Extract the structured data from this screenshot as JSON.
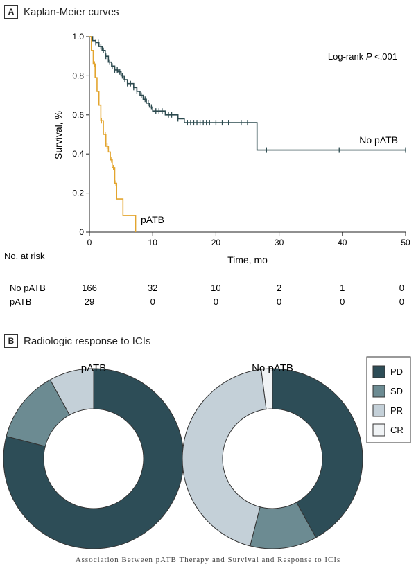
{
  "panel_a": {
    "letter": "A",
    "title": "Kaplan-Meier curves"
  },
  "panel_b": {
    "letter": "B",
    "title": "Radiologic response to ICIs"
  },
  "caption": "Association Between pATB Therapy and Survival and Response to ICIs",
  "colors": {
    "no_patb": "#2c4a4f",
    "patb": "#e3a52f",
    "PD": "#2d4d57",
    "SD": "#6c8b92",
    "PR": "#c4d0d8",
    "CR": "#f0f3f5"
  },
  "chart_data": [
    {
      "type": "line",
      "subtype": "kaplan-meier",
      "title": "Kaplan-Meier curves",
      "xlabel": "Time, mo",
      "ylabel": "Survival, %",
      "xlim": [
        0,
        50
      ],
      "ylim": [
        0,
        1.0
      ],
      "xticks": [
        0,
        10,
        20,
        30,
        40,
        50
      ],
      "yticks": [
        0,
        0.2,
        0.4,
        0.6,
        0.8,
        1.0
      ],
      "ytick_labels": [
        "0",
        "0.2",
        "0.4",
        "0.6",
        "0.8",
        "1.0"
      ],
      "annotation": {
        "prefix": "Log-rank ",
        "italic": "P",
        "suffix": " <.001"
      },
      "series": [
        {
          "name": "No pATB",
          "color": "#2c4a4f",
          "steps": [
            [
              0,
              1.0
            ],
            [
              0.5,
              0.98
            ],
            [
              1,
              0.97
            ],
            [
              1.5,
              0.95
            ],
            [
              2,
              0.93
            ],
            [
              2.5,
              0.9
            ],
            [
              3,
              0.87
            ],
            [
              3.5,
              0.85
            ],
            [
              4,
              0.83
            ],
            [
              4.5,
              0.82
            ],
            [
              5,
              0.8
            ],
            [
              5.5,
              0.78
            ],
            [
              6,
              0.76
            ],
            [
              7,
              0.74
            ],
            [
              7.5,
              0.72
            ],
            [
              8,
              0.7
            ],
            [
              8.5,
              0.68
            ],
            [
              9,
              0.66
            ],
            [
              9.5,
              0.64
            ],
            [
              10,
              0.62
            ],
            [
              12,
              0.6
            ],
            [
              14,
              0.58
            ],
            [
              15,
              0.56
            ],
            [
              26.5,
              0.42
            ],
            [
              50,
              0.42
            ]
          ],
          "censor_times": [
            1,
            1.4,
            1.8,
            2.2,
            2.6,
            3.2,
            3.6,
            4,
            4.4,
            4.8,
            5.2,
            5.6,
            6,
            6.5,
            7,
            7.5,
            8.2,
            8.8,
            9.3,
            9.8,
            10.5,
            11,
            11.5,
            12.5,
            13,
            14,
            15.5,
            16,
            16.5,
            17,
            17.5,
            18,
            18.5,
            19,
            20,
            21,
            22,
            24,
            25,
            28,
            39.5,
            50
          ]
        },
        {
          "name": "pATB",
          "color": "#e3a52f",
          "steps": [
            [
              0,
              1.0
            ],
            [
              0.3,
              0.93
            ],
            [
              0.6,
              0.86
            ],
            [
              0.9,
              0.79
            ],
            [
              1.2,
              0.72
            ],
            [
              1.5,
              0.65
            ],
            [
              1.8,
              0.57
            ],
            [
              2.2,
              0.5
            ],
            [
              2.6,
              0.44
            ],
            [
              3.0,
              0.41
            ],
            [
              3.3,
              0.37
            ],
            [
              3.6,
              0.33
            ],
            [
              4.0,
              0.25
            ],
            [
              4.3,
              0.17
            ],
            [
              5.3,
              0.085
            ],
            [
              7.3,
              0.0
            ]
          ],
          "censor_times": [
            0.8,
            1.9,
            2.5,
            2.8,
            3.5,
            3.8,
            4.2
          ]
        }
      ],
      "at_risk": {
        "label": "No. at risk",
        "times": [
          0,
          10,
          20,
          30,
          40,
          50
        ],
        "rows": [
          {
            "name": "No pATB",
            "values": [
              "166",
              "32",
              "10",
              "2",
              "1",
              "0"
            ]
          },
          {
            "name": "pATB",
            "values": [
              "29",
              "0",
              "0",
              "0",
              "0",
              "0"
            ]
          }
        ]
      },
      "curve_labels": {
        "no_patb": "No pATB",
        "patb": "pATB"
      }
    },
    {
      "type": "pie",
      "subtype": "donut",
      "title": "Radiologic response to ICIs",
      "legend": [
        "PD",
        "SD",
        "PR",
        "CR"
      ],
      "legend_placement": "top-right",
      "pies": [
        {
          "name": "pATB",
          "slices": [
            {
              "label": "PD",
              "value": 79
            },
            {
              "label": "SD",
              "value": 13
            },
            {
              "label": "PR",
              "value": 8
            },
            {
              "label": "CR",
              "value": 0
            }
          ]
        },
        {
          "name": "No pATB",
          "slices": [
            {
              "label": "PD",
              "value": 42
            },
            {
              "label": "SD",
              "value": 12
            },
            {
              "label": "PR",
              "value": 44
            },
            {
              "label": "CR",
              "value": 2
            }
          ]
        }
      ]
    }
  ]
}
